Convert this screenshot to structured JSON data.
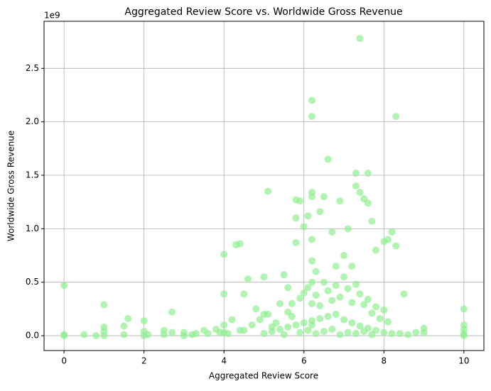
{
  "chart_data": {
    "type": "scatter",
    "title": "Aggregated Review Score vs. Worldwide Gross Revenue",
    "x_label": "Aggregated Review Score",
    "y_label": "Worldwide Gross Revenue",
    "y_offset_label": "1e9",
    "color": "#90ee90",
    "grid": true,
    "xlim": [
      -0.5,
      10.5
    ],
    "ylim": [
      -0.139,
      2.94
    ],
    "xticks": [
      0,
      2,
      4,
      6,
      8,
      10
    ],
    "yticks": [
      {
        "value": 0,
        "label": "0.0"
      },
      0.5,
      {
        "value": 1,
        "label": "1.0"
      },
      1.5,
      {
        "value": 2,
        "label": "2.0"
      },
      2.5
    ],
    "x": [
      0,
      0,
      0,
      0.5,
      0.8,
      1,
      1,
      1,
      1,
      1.5,
      1.5,
      1.6,
      2,
      2,
      2,
      2.1,
      2.5,
      2.5,
      2.7,
      2.7,
      3,
      3,
      3.3,
      3.5,
      3.8,
      4,
      4,
      4,
      4,
      4.2,
      4.3,
      4.4,
      4.5,
      4.6,
      4.8,
      5,
      5.1,
      5,
      5.2,
      5.5,
      5.6,
      5.7,
      5.8,
      5.8,
      5.8,
      5.9,
      6,
      6.1,
      6.2,
      6.2,
      6.2,
      6.2,
      6.2,
      6.2,
      6.2,
      6.2,
      6.2,
      6.3,
      6.4,
      6.5,
      6.6,
      6.7,
      6.8,
      6.9,
      7,
      7.1,
      7.2,
      7.3,
      7.3,
      7.4,
      7.4,
      7.5,
      7.6,
      7.6,
      7.7,
      7.8,
      8,
      8.1,
      8.2,
      8.3,
      8.3,
      8.5,
      9,
      9,
      10,
      10,
      10,
      10,
      10,
      4.5,
      4.7,
      4.9,
      5.1,
      5.3,
      5.4,
      5.6,
      5.7,
      5.9,
      6,
      6.1,
      6.3,
      6.4,
      6.5,
      6.6,
      6.7,
      6.8,
      6.9,
      7,
      7.1,
      7.2,
      7.3,
      7.4,
      7.5,
      7.6,
      7.7,
      7.8,
      7.9,
      8,
      8.1,
      5,
      5.2,
      5.4,
      5.6,
      5.8,
      6,
      6.2,
      6.4,
      6.6,
      6.8,
      7,
      7.2,
      7.4,
      7.6,
      7.8,
      8,
      8.2,
      5.5,
      5.9,
      6.1,
      6.3,
      6.5,
      6.7,
      6.9,
      7.1,
      7.3,
      7.5,
      7.7,
      3.2,
      3.6,
      3.9,
      4.1,
      4.4,
      8.4,
      8.6,
      8.8
    ],
    "y": [
      0.47,
      0.01,
      0,
      0.01,
      0,
      0.29,
      0.08,
      0.04,
      0,
      0.09,
      0.01,
      0.16,
      0.14,
      0.04,
      0,
      0.01,
      0.01,
      0.05,
      0.22,
      0.03,
      0.03,
      0,
      0.02,
      0.05,
      0.06,
      0.76,
      0.39,
      0.1,
      0.03,
      0.15,
      0.85,
      0.86,
      0.39,
      0.53,
      0.25,
      0.55,
      1.35,
      0.2,
      0.08,
      0.57,
      0.45,
      0.3,
      1.27,
      0.87,
      1.1,
      1.26,
      1.02,
      1.12,
      2.2,
      2.05,
      1.34,
      1.3,
      0.9,
      0.7,
      0.5,
      0.3,
      0.1,
      0.6,
      1.16,
      1.3,
      1.65,
      0.97,
      0.65,
      1.26,
      0.75,
      1.0,
      0.65,
      1.52,
      1.4,
      2.78,
      1.34,
      1.28,
      1.52,
      1.24,
      1.07,
      0.8,
      0.88,
      0.9,
      0.97,
      2.05,
      0.84,
      0.39,
      0.07,
      0.03,
      0.25,
      0.1,
      0.06,
      0.02,
      0,
      0.05,
      0.1,
      0.15,
      0.2,
      0.12,
      0.3,
      0.22,
      0.18,
      0.35,
      0.4,
      0.45,
      0.38,
      0.28,
      0.5,
      0.42,
      0.33,
      0.47,
      0.36,
      0.55,
      0.44,
      0.31,
      0.48,
      0.39,
      0.29,
      0.34,
      0.21,
      0.27,
      0.16,
      0.24,
      0.13,
      0.02,
      0.04,
      0.06,
      0.08,
      0.1,
      0.12,
      0.14,
      0.16,
      0.18,
      0.2,
      0.15,
      0.12,
      0.09,
      0.07,
      0.05,
      0.03,
      0.02,
      0.01,
      0.03,
      0.05,
      0.02,
      0.04,
      0.06,
      0.01,
      0.03,
      0.02,
      0.04,
      0.01,
      0.01,
      0.02,
      0.03,
      0.02,
      0.05,
      0.02,
      0.01,
      0.03
    ]
  }
}
